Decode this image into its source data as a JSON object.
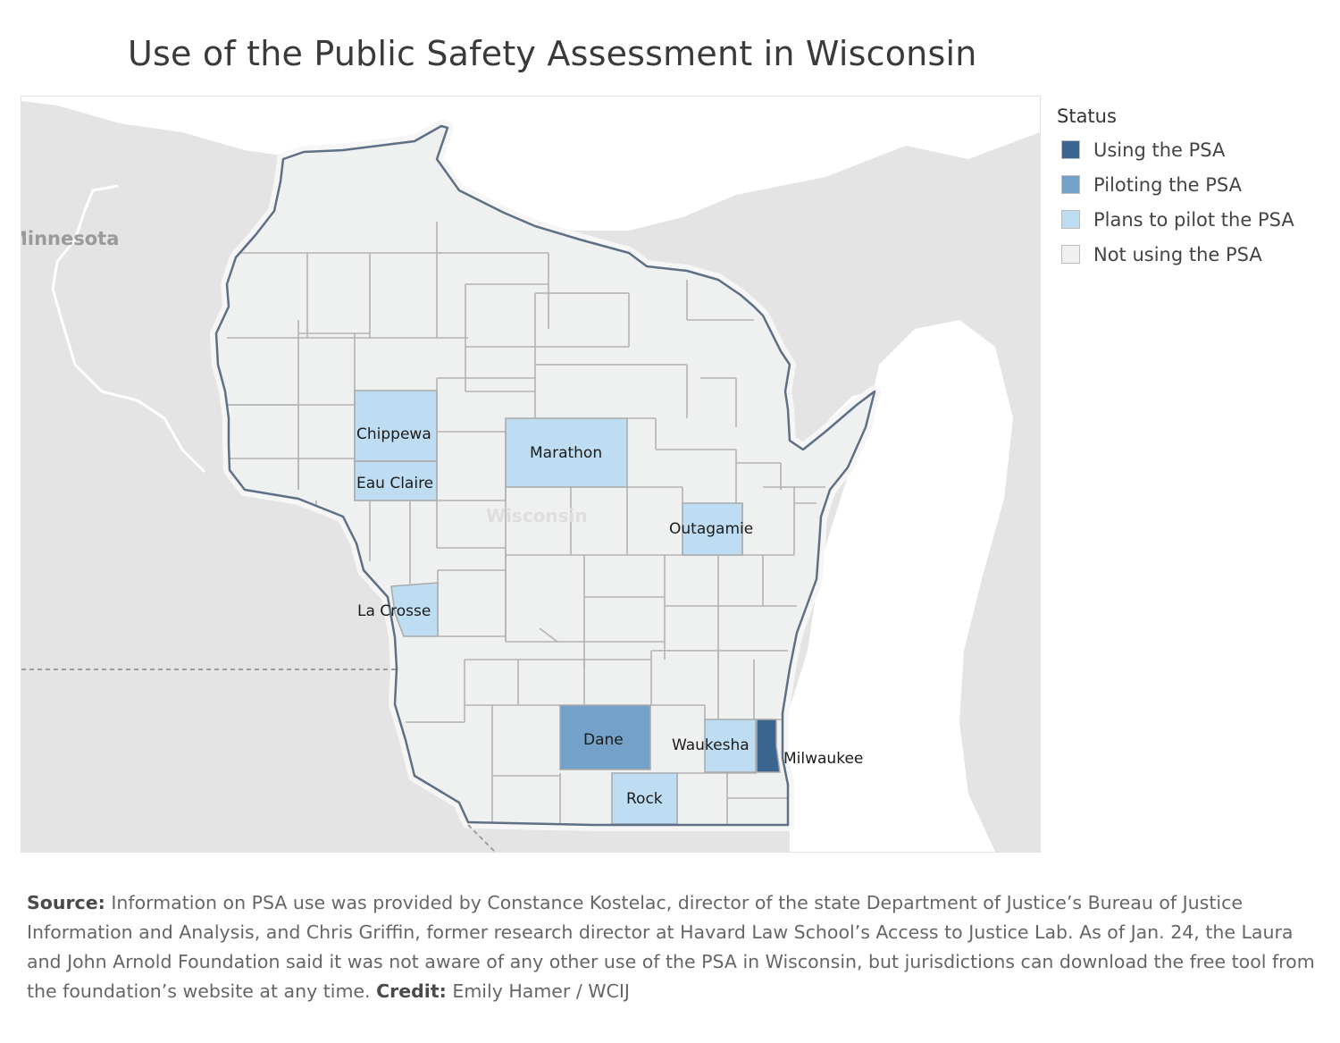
{
  "title": "Use of the Public Safety Assessment in Wisconsin",
  "legend": {
    "title": "Status",
    "items": [
      {
        "label": "Using the PSA",
        "color": "#3b6591"
      },
      {
        "label": "Piloting the PSA",
        "color": "#74a1c9"
      },
      {
        "label": "Plans to pilot the PSA",
        "color": "#bfddf2"
      },
      {
        "label": "Not using the PSA",
        "color": "#eff0f0"
      }
    ]
  },
  "map": {
    "neighbor_label": "Minnesota",
    "state_watermark": "Wisconsin",
    "counties": [
      {
        "name": "Chippewa",
        "status": "Plans to pilot the PSA"
      },
      {
        "name": "Eau Claire",
        "status": "Plans to pilot the PSA"
      },
      {
        "name": "Marathon",
        "status": "Plans to pilot the PSA"
      },
      {
        "name": "Outagamie",
        "status": "Plans to pilot the PSA"
      },
      {
        "name": "La Crosse",
        "status": "Plans to pilot the PSA"
      },
      {
        "name": "Dane",
        "status": "Piloting the PSA"
      },
      {
        "name": "Waukesha",
        "status": "Plans to pilot the PSA"
      },
      {
        "name": "Milwaukee",
        "status": "Using the PSA"
      },
      {
        "name": "Rock",
        "status": "Plans to pilot the PSA"
      }
    ]
  },
  "source": {
    "source_label": "Source:",
    "source_text": "Information on PSA use was provided by Constance Kostelac, director of the state Department of Justice’s Bureau of Justice Information and Analysis, and Chris Griffin, former research director at Havard Law School’s Access to Justice Lab. As of Jan. 24, the Laura and John Arnold Foundation said it was not aware of any other use of the PSA in Wisconsin, but jurisdictions can download the free tool from the foundation’s website at any time.",
    "credit_label": "Credit:",
    "credit_text": "Emily Hamer / WCIJ"
  }
}
